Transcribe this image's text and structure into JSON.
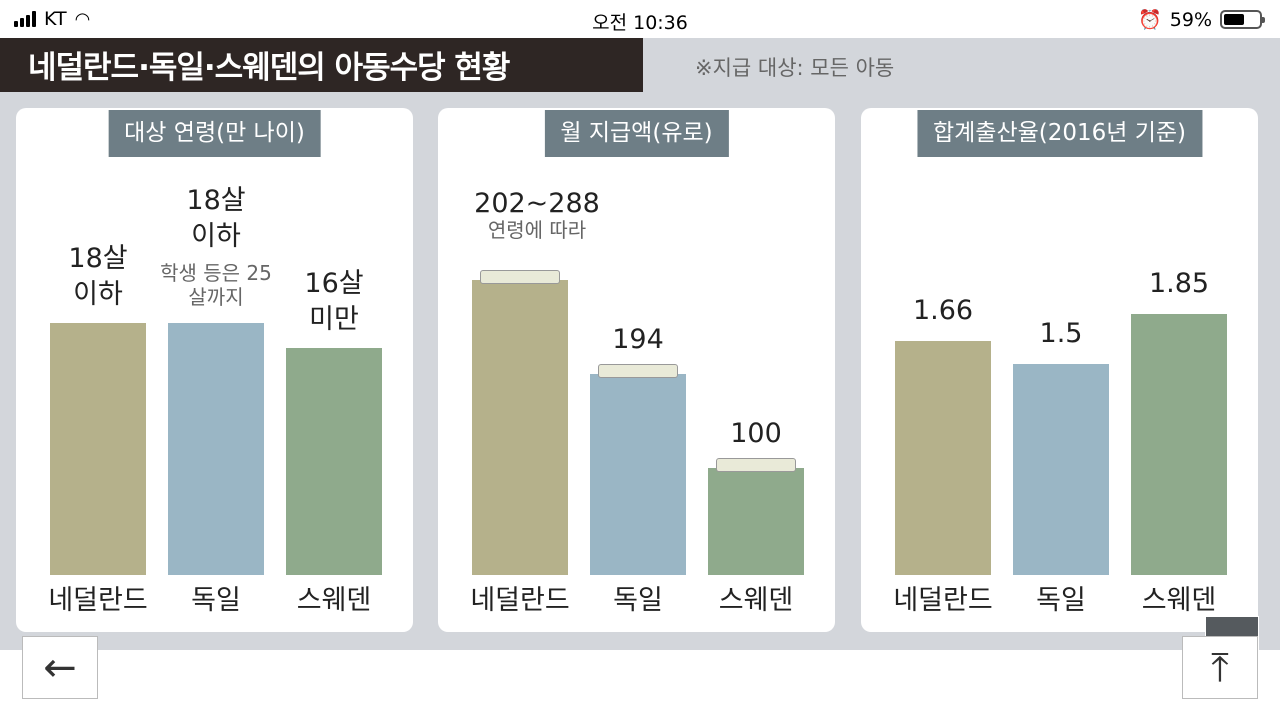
{
  "status_bar": {
    "carrier": "KT",
    "time": "오전 10:36",
    "battery": "59%",
    "battery_level": 0.59
  },
  "infographic": {
    "title": "네덜란드·독일·스웨덴의 아동수당 현황",
    "note": "※지급 대상: 모든 아동"
  },
  "colors": {
    "netherlands": "#b5b18b",
    "germany": "#9ab6c5",
    "sweden": "#8faa8c",
    "header": "#6e7e86",
    "title_bg": "#2e2624"
  },
  "chart_data": [
    {
      "type": "bar",
      "title": "대상 연령(만 나이)",
      "categories": [
        "네덜란드",
        "독일",
        "스웨덴"
      ],
      "values": [
        18,
        18,
        16
      ],
      "labels": [
        [
          "18살",
          "이하"
        ],
        [
          "18살",
          "이하"
        ],
        [
          "16살",
          "미만"
        ]
      ],
      "sublabels": [
        "",
        "학생 등은 25살까지",
        ""
      ]
    },
    {
      "type": "bar",
      "title": "월 지급액(유로)",
      "categories": [
        "네덜란드",
        "독일",
        "스웨덴"
      ],
      "values": [
        288,
        194,
        100
      ],
      "labels": [
        "202~288",
        "194",
        "100"
      ],
      "sublabels": [
        "연령에 따라",
        "",
        ""
      ]
    },
    {
      "type": "bar",
      "title": "합계출산율(2016년 기준)",
      "categories": [
        "네덜란드",
        "독일",
        "스웨덴"
      ],
      "values": [
        1.66,
        1.5,
        1.85
      ],
      "labels": [
        "1.66",
        "1.5",
        "1.85"
      ]
    }
  ],
  "nav": {
    "back": "←",
    "top": "⤒",
    "zoom": "⌕"
  }
}
